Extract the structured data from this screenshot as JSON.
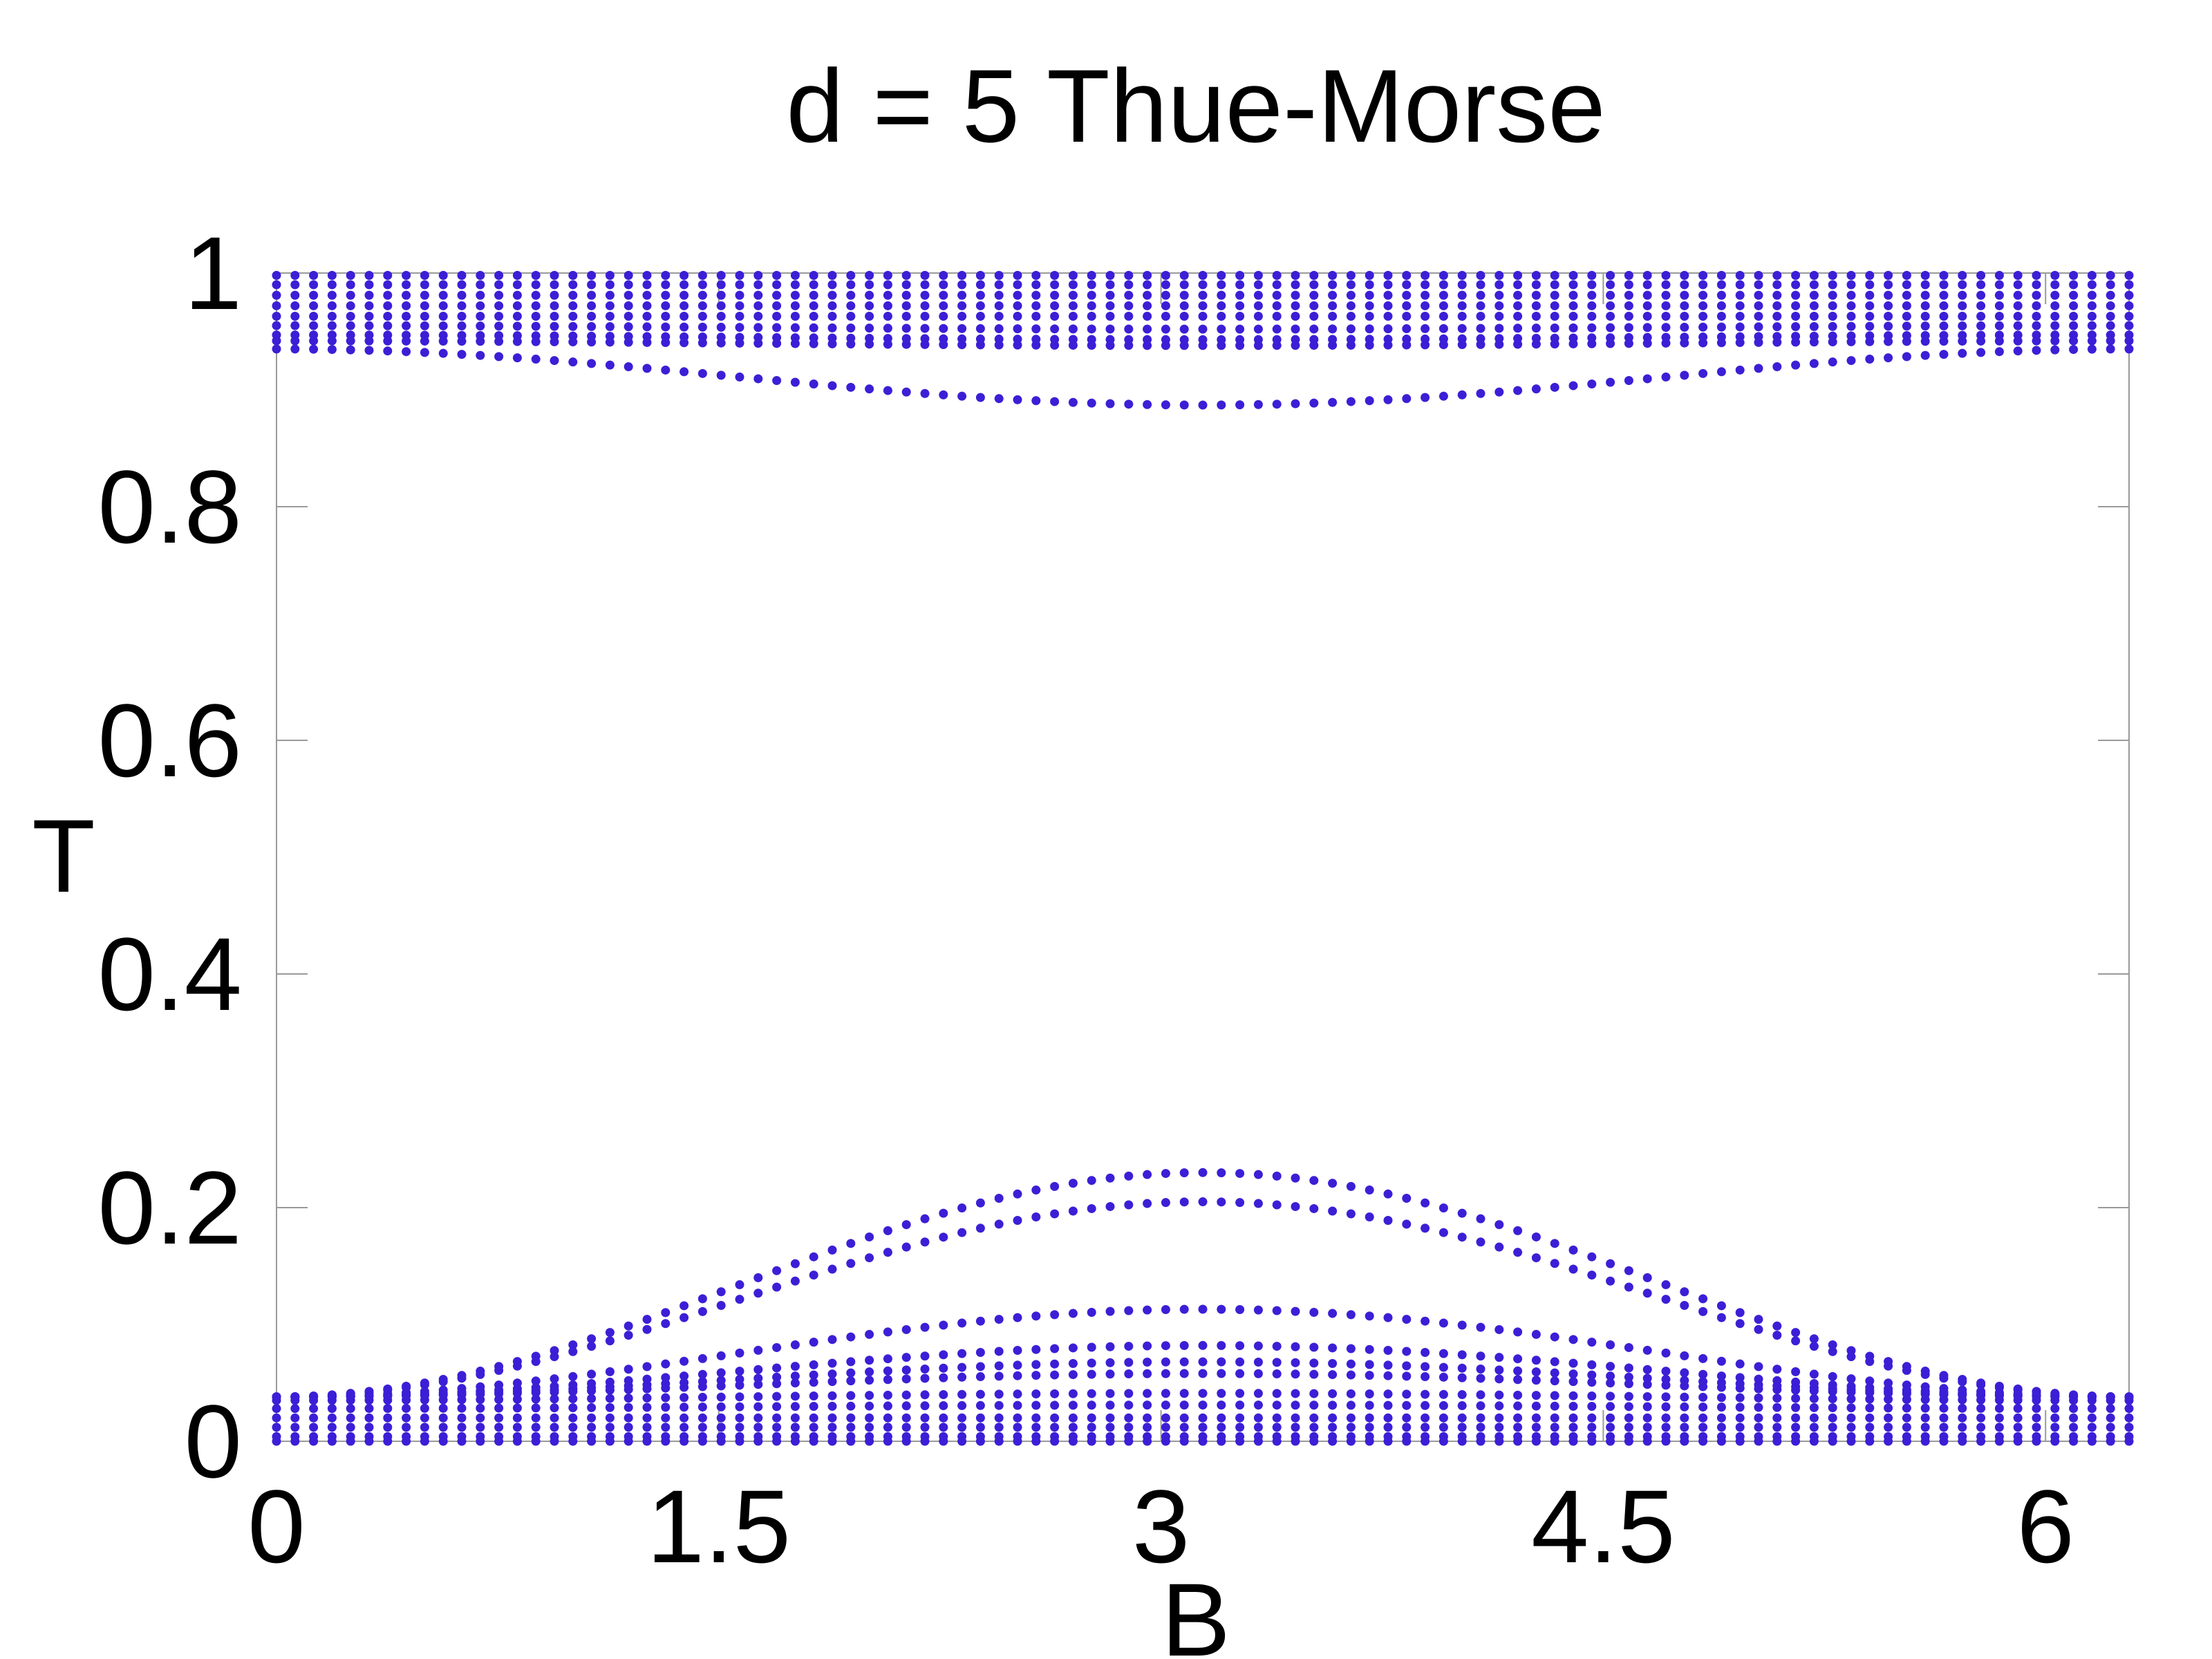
{
  "chart_data": {
    "type": "scatter",
    "title": "d = 5 Thue-Morse",
    "xlabel": "B",
    "ylabel": "T",
    "xlim": [
      0,
      6.2832
    ],
    "ylim": [
      0,
      1
    ],
    "xticks": [
      "0",
      "1.5",
      "3",
      "4.5",
      "6"
    ],
    "xtick_values": [
      0,
      1.5,
      3,
      4.5,
      6
    ],
    "yticks": [
      "0",
      "0.2",
      "0.4",
      "0.6",
      "0.8",
      "1"
    ],
    "ytick_values": [
      0,
      0.2,
      0.4,
      0.6,
      0.8,
      1
    ],
    "grid": false,
    "marker_color": "#3b1fd6",
    "x_sampling": {
      "start": 0,
      "end": 6.2832,
      "count": 101
    },
    "series": [
      {
        "base": 0.998,
        "amp": 0.0
      },
      {
        "base": 0.99,
        "amp": 0.0
      },
      {
        "base": 0.981,
        "amp": 0.0
      },
      {
        "base": 0.972,
        "amp": 0.0
      },
      {
        "base": 0.963,
        "amp": 0.0
      },
      {
        "base": 0.955,
        "amp": -0.003
      },
      {
        "base": 0.947,
        "amp": -0.004
      },
      {
        "base": 0.942,
        "amp": -0.004
      },
      {
        "base": 0.935,
        "amp": -0.048
      },
      {
        "base": 0.0,
        "amp": 0.0
      },
      {
        "base": 0.004,
        "amp": 0.0
      },
      {
        "base": 0.012,
        "amp": 0.0
      },
      {
        "base": 0.02,
        "amp": 0.0
      },
      {
        "base": 0.028,
        "amp": 0.003
      },
      {
        "base": 0.035,
        "amp": 0.006
      },
      {
        "base": 0.038,
        "amp": 0.02
      },
      {
        "base": 0.038,
        "amp": 0.03
      },
      {
        "base": 0.038,
        "amp": 0.044
      },
      {
        "base": 0.038,
        "amp": 0.075
      },
      {
        "base": 0.038,
        "amp": 0.167
      },
      {
        "base": 0.038,
        "amp": 0.192
      }
    ]
  }
}
